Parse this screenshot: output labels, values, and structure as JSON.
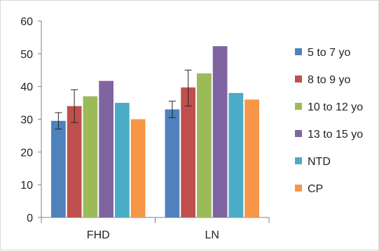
{
  "chart_data": {
    "type": "bar",
    "title": "",
    "xlabel": "",
    "ylabel": "",
    "ylim": [
      0,
      60
    ],
    "yticks": [
      0,
      10,
      20,
      30,
      40,
      50,
      60
    ],
    "grid": false,
    "legend_position": "right",
    "categories": [
      "FHD",
      "LN"
    ],
    "series": [
      {
        "name": "5 to 7 yo",
        "color": "#4f81bd",
        "values": [
          29.5,
          33.0
        ],
        "error": [
          [
            27,
            32
          ],
          [
            30.5,
            35.5
          ]
        ]
      },
      {
        "name": "8 to 9 yo",
        "color": "#c0504d",
        "values": [
          34.0,
          39.7
        ],
        "error": [
          [
            29,
            39
          ],
          [
            34,
            45
          ]
        ]
      },
      {
        "name": "10 to 12 yo",
        "color": "#9bbb59",
        "values": [
          37.0,
          44.0
        ],
        "error": null
      },
      {
        "name": "13 to 15 yo",
        "color": "#8064a2",
        "values": [
          41.7,
          52.3
        ],
        "error": null
      },
      {
        "name": "NTD",
        "color": "#4bacc6",
        "values": [
          35.0,
          38.0
        ],
        "error": null
      },
      {
        "name": "CP",
        "color": "#f79646",
        "values": [
          30.0,
          36.0
        ],
        "error": null
      }
    ]
  }
}
